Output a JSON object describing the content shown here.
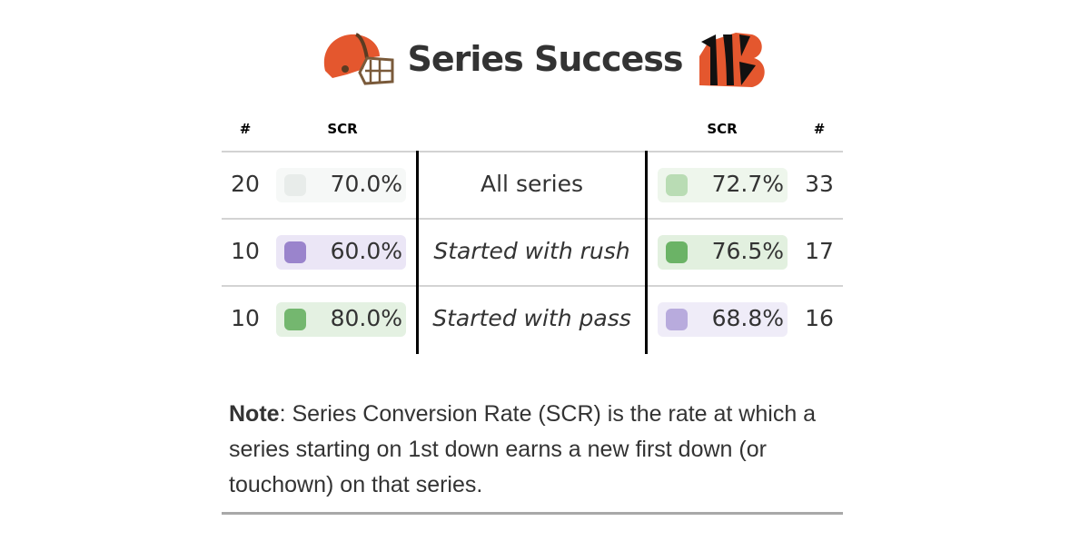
{
  "title": "Series Success",
  "logos": {
    "left": "Cleveland Browns helmet",
    "right": "Cincinnati Bengals B"
  },
  "colors": {
    "green_strong": "#6bb366",
    "green_light": "#b9dcb4",
    "purple_strong": "#9a84cc",
    "purple_light": "#b8abdd",
    "neutral": "#e8ecea"
  },
  "chart_data": {
    "type": "table",
    "title": "Series Success",
    "columns": [
      "#",
      "SCR",
      "",
      "SCR",
      "#"
    ],
    "rows": [
      {
        "label": "All series",
        "left_n": "20",
        "left_scr": "70.0%",
        "right_scr": "72.7%",
        "right_n": "33",
        "italic": false
      },
      {
        "label": "Started with rush",
        "left_n": "10",
        "left_scr": "60.0%",
        "right_scr": "76.5%",
        "right_n": "17",
        "italic": true
      },
      {
        "label": "Started with pass",
        "left_n": "10",
        "left_scr": "80.0%",
        "right_scr": "68.8%",
        "right_n": "16",
        "italic": true
      }
    ]
  },
  "note": {
    "bold": "Note",
    "text": ": Series Conversion Rate (SCR) is the rate at which a series starting on 1st down earns a new first down (or touchown) on that series."
  }
}
